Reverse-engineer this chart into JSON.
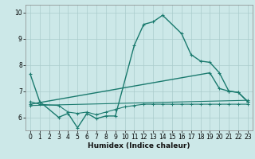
{
  "xlabel": "Humidex (Indice chaleur)",
  "xlim": [
    -0.5,
    23.5
  ],
  "ylim": [
    5.5,
    10.3
  ],
  "yticks": [
    6,
    7,
    8,
    9,
    10
  ],
  "xticks": [
    0,
    1,
    2,
    3,
    4,
    5,
    6,
    7,
    8,
    9,
    10,
    11,
    12,
    13,
    14,
    15,
    16,
    17,
    18,
    19,
    20,
    21,
    22,
    23
  ],
  "bg_color": "#cce8e8",
  "line_color": "#1a7a6e",
  "grid_color": "#aacccc",
  "lines": [
    {
      "x": [
        0,
        1,
        3,
        4,
        5,
        6,
        7,
        8,
        9,
        11,
        12,
        13,
        14,
        16,
        17,
        18,
        19,
        20,
        21,
        22,
        23
      ],
      "y": [
        7.65,
        6.6,
        6.0,
        6.15,
        5.6,
        6.15,
        5.95,
        6.05,
        6.05,
        8.75,
        9.55,
        9.65,
        9.9,
        9.2,
        8.4,
        8.15,
        8.1,
        7.7,
        7.0,
        6.95,
        6.6
      ]
    },
    {
      "x": [
        0,
        19,
        20,
        21,
        22,
        23
      ],
      "y": [
        6.5,
        7.7,
        7.1,
        7.0,
        6.95,
        6.6
      ]
    },
    {
      "x": [
        0,
        23
      ],
      "y": [
        6.45,
        6.65
      ]
    },
    {
      "x": [
        0,
        1,
        3,
        4,
        5,
        6,
        7,
        8,
        9,
        10,
        11,
        12,
        13,
        14,
        15,
        16,
        17,
        18,
        19,
        20,
        21,
        22,
        23
      ],
      "y": [
        6.6,
        6.5,
        6.45,
        6.2,
        6.15,
        6.2,
        6.1,
        6.2,
        6.3,
        6.4,
        6.45,
        6.5,
        6.5,
        6.5,
        6.5,
        6.5,
        6.5,
        6.5,
        6.5,
        6.5,
        6.5,
        6.5,
        6.5
      ]
    }
  ]
}
